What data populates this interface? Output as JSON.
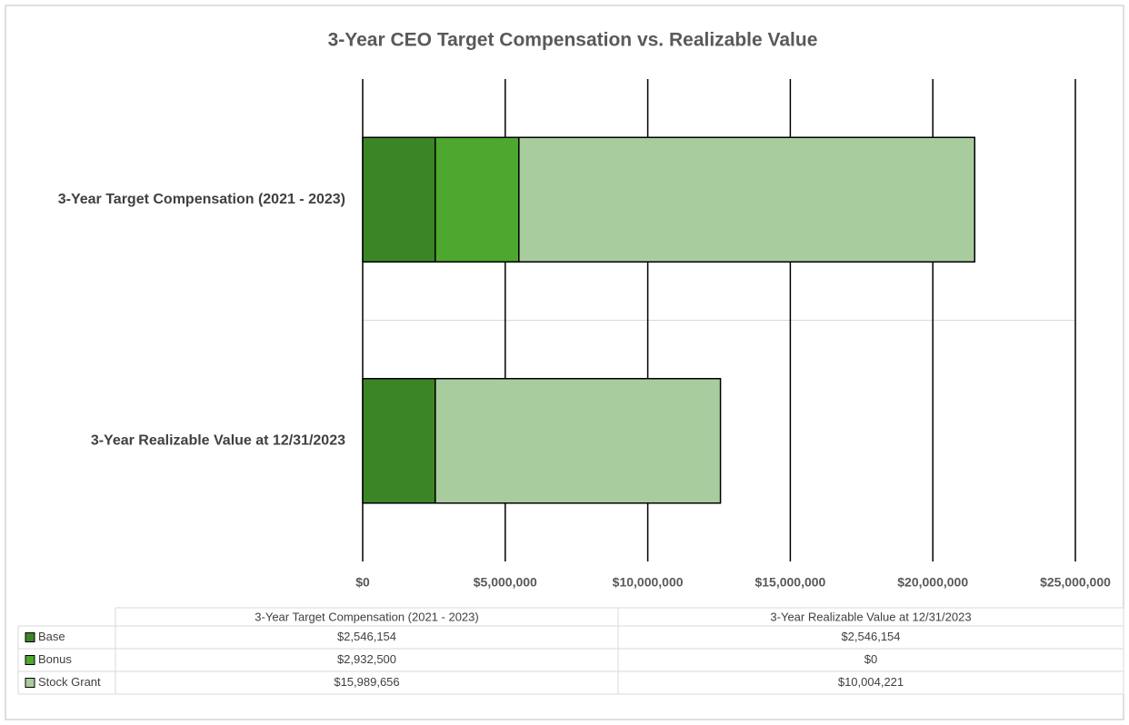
{
  "chart_data": {
    "type": "stacked_bar_horizontal",
    "title": "3-Year CEO Target Compensation vs. Realizable Value",
    "categories": [
      "3-Year Target Compensation (2021 - 2023)",
      "3-Year Realizable Value at 12/31/2023"
    ],
    "series": [
      {
        "name": "Base",
        "color": "#3c8526",
        "values": [
          2546154,
          2546154
        ],
        "value_labels": [
          "$2,546,154",
          "$2,546,154"
        ]
      },
      {
        "name": "Bonus",
        "color": "#4ea72e",
        "values": [
          2932500,
          0
        ],
        "value_labels": [
          "$2,932,500",
          "$0"
        ]
      },
      {
        "name": "Stock Grant",
        "color": "#a9cc9f",
        "values": [
          15989656,
          10004221
        ],
        "value_labels": [
          "$15,989,656",
          "$10,004,221"
        ]
      }
    ],
    "xlim": [
      0,
      25000000
    ],
    "xticks": [
      {
        "value": 0,
        "label": "$0"
      },
      {
        "value": 5000000,
        "label": "$5,000,000"
      },
      {
        "value": 10000000,
        "label": "$10,000,000"
      },
      {
        "value": 15000000,
        "label": "$15,000,000"
      },
      {
        "value": 20000000,
        "label": "$20,000,000"
      },
      {
        "value": 25000000,
        "label": "$25,000,000"
      }
    ],
    "grid": true,
    "data_table": true
  }
}
